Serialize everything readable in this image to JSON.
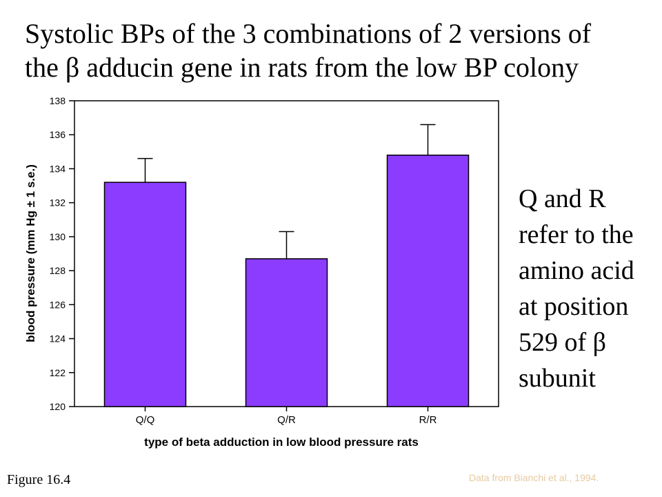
{
  "slide": {
    "title_line1": "Systolic BPs of the 3 combinations of 2 versions of",
    "title_line2": "the β adducin gene in rats from the low BP colony",
    "side_note": "Q and R refer to the amino acid at position 529 of β subunit",
    "figure_label": "Figure 16.4",
    "source": "Data from Bianchi et al., 1994."
  },
  "chart_data": {
    "type": "bar",
    "categories": [
      "Q/Q",
      "Q/R",
      "R/R"
    ],
    "series": [
      {
        "values": [
          133.2,
          128.7,
          134.8
        ],
        "errors": [
          1.4,
          1.6,
          1.8
        ]
      }
    ],
    "xlabel": "type of beta adduction in low blood pressure rats",
    "ylabel": "blood pressure (mm Hg ± 1 s.e.)",
    "ylim": [
      120,
      138
    ],
    "yticks": [
      120,
      122,
      124,
      126,
      128,
      130,
      132,
      134,
      136,
      138
    ],
    "grid": false,
    "bar_color": "#8c3cff",
    "error_bars": true
  }
}
